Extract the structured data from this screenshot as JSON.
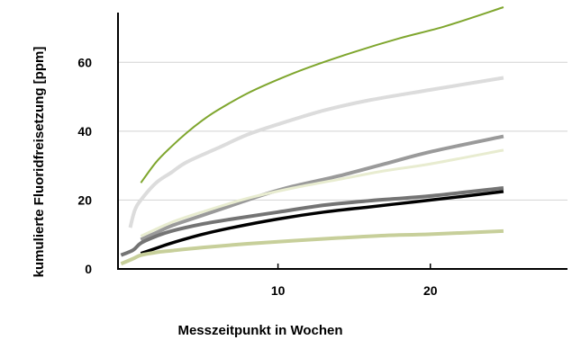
{
  "chart_data": {
    "type": "line",
    "title": "",
    "xlabel": "Messzeitpunkt in Wochen",
    "ylabel": "kumulierte Fluoridfreisetzung [ppm]",
    "xlim": [
      -0.5,
      29
    ],
    "ylim": [
      0,
      76
    ],
    "x_ticks": [
      10,
      20
    ],
    "y_ticks": [
      0,
      20,
      40,
      60
    ],
    "grid": "horizontal",
    "legend": "none",
    "series": [
      {
        "color": "#7fa62e",
        "width": 2,
        "x": [
          1,
          2,
          3,
          4,
          5,
          6,
          8,
          10,
          12,
          15,
          18,
          21,
          24.8
        ],
        "y": [
          25,
          31,
          35.5,
          39.5,
          43,
          46,
          51,
          55,
          58.5,
          63,
          67,
          70.5,
          76
        ]
      },
      {
        "color": "#dcdcdc",
        "width": 4,
        "x": [
          0.3,
          0.6,
          1,
          2,
          3,
          4,
          6,
          8,
          10,
          13,
          16,
          20,
          24.8
        ],
        "y": [
          12,
          17,
          20,
          25,
          28,
          31,
          35,
          39,
          42,
          46,
          49,
          52,
          55.5
        ]
      },
      {
        "color": "#9a9a9a",
        "width": 4,
        "x": [
          1,
          2,
          3,
          5,
          7,
          9,
          11,
          14,
          17,
          20,
          24.8
        ],
        "y": [
          8.5,
          10.5,
          12.5,
          15.5,
          18.5,
          21.5,
          24,
          27,
          30.5,
          34,
          38.5
        ]
      },
      {
        "color": "#e8ecd0",
        "width": 3,
        "x": [
          1,
          3,
          5,
          8,
          11,
          14,
          17,
          20,
          24.8
        ],
        "y": [
          9.5,
          13.5,
          16.5,
          20.5,
          23.5,
          26,
          28.5,
          30.5,
          34.5
        ]
      },
      {
        "color": "#747474",
        "width": 4,
        "x": [
          -0.3,
          0.5,
          1,
          2,
          3,
          5,
          7,
          10,
          13,
          16,
          20,
          24.8
        ],
        "y": [
          4,
          5.5,
          7.5,
          9.5,
          11,
          13,
          14.5,
          16.5,
          18.5,
          19.8,
          21.2,
          23.5
        ]
      },
      {
        "color": "#000000",
        "width": 3.5,
        "x": [
          1,
          2,
          3,
          5,
          7,
          10,
          13,
          16,
          19,
          22,
          24.8
        ],
        "y": [
          4.5,
          6,
          7.5,
          10,
          12,
          14.5,
          16.5,
          18,
          19.5,
          21,
          22.5
        ]
      },
      {
        "color": "#c7cf9a",
        "width": 4,
        "x": [
          -0.3,
          0.5,
          1,
          2,
          3,
          5,
          8,
          11,
          14,
          17,
          20,
          24.8
        ],
        "y": [
          1.5,
          3,
          4,
          4.8,
          5.3,
          6.2,
          7.3,
          8.2,
          9,
          9.7,
          10.1,
          11
        ]
      }
    ]
  }
}
